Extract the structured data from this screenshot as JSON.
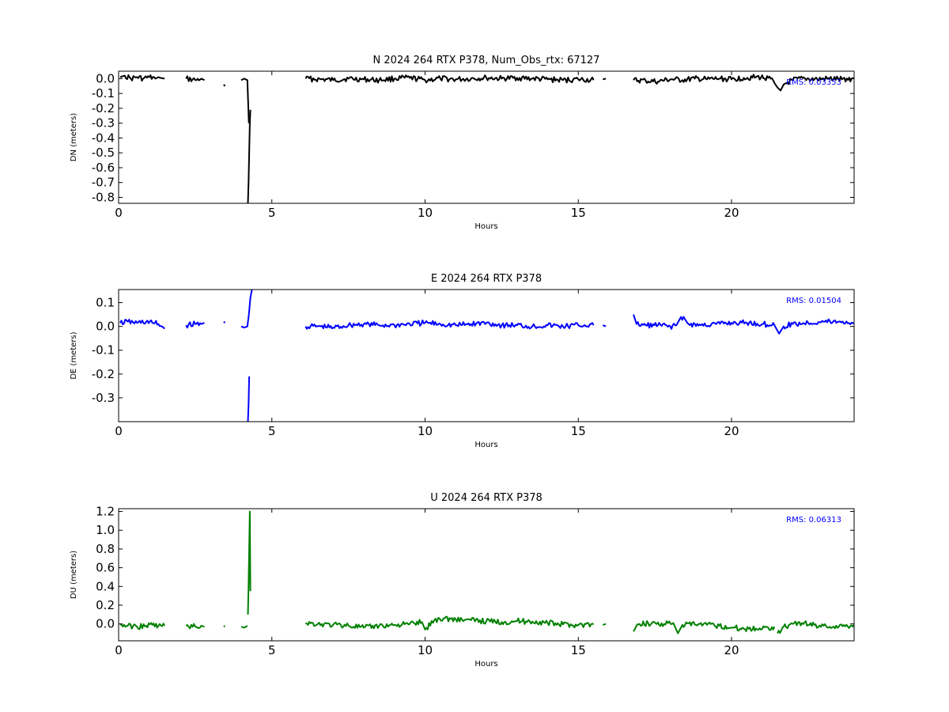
{
  "chart_data": [
    {
      "type": "line",
      "title": "N 2024 264 RTX  P378, Num_Obs_rtx: 67127",
      "xlabel": "Hours",
      "ylabel": "DN (meters)",
      "xlim": [
        0,
        24
      ],
      "ylim": [
        -0.84,
        0.05
      ],
      "xticks": [
        0,
        5,
        10,
        15,
        20
      ],
      "yticks": [
        0.0,
        -0.1,
        -0.2,
        -0.3,
        -0.4,
        -0.5,
        -0.6,
        -0.7,
        -0.8
      ],
      "rms_label": "RMS:  0.03353",
      "color": "#000000",
      "series": [
        {
          "x": [
            0.05,
            0.2,
            0.4,
            0.6,
            0.8,
            1.0,
            1.2,
            1.3,
            1.35,
            1.5
          ],
          "y": [
            0.01,
            0.02,
            0.0,
            0.01,
            0.0,
            0.01,
            0.0,
            0.01,
            0.005,
            0.0
          ]
        },
        {
          "x": [
            2.2,
            2.5,
            2.7,
            2.8
          ],
          "y": [
            0.0,
            -0.01,
            0.0,
            -0.01
          ]
        },
        {
          "x": [
            3.43,
            3.47
          ],
          "y": [
            -0.04,
            -0.05
          ]
        },
        {
          "x": [
            4.0,
            4.1,
            4.2,
            4.25
          ],
          "y": [
            -0.01,
            0.0,
            -0.01,
            -0.3
          ]
        },
        {
          "x": [
            4.22,
            4.24,
            4.26,
            4.28,
            4.3
          ],
          "y": [
            -0.84,
            -0.7,
            -0.5,
            -0.3,
            -0.21
          ]
        },
        {
          "x": [
            6.1,
            6.6,
            7.0,
            7.5,
            8.0,
            8.5,
            9.0,
            9.5,
            10.0,
            10.5,
            11.0,
            11.5,
            12.0,
            12.5,
            13.0,
            13.5,
            14.0,
            14.5,
            15.0,
            15.5
          ],
          "y": [
            0.0,
            -0.005,
            -0.01,
            0.0,
            -0.005,
            -0.01,
            0.0,
            0.005,
            -0.01,
            0.0,
            -0.005,
            0.0,
            0.005,
            0.0,
            0.005,
            0.0,
            -0.005,
            -0.01,
            -0.005,
            -0.01
          ]
        },
        {
          "x": [
            15.8,
            15.9
          ],
          "y": [
            -0.005,
            0.0
          ]
        },
        {
          "x": [
            16.8,
            17.2,
            17.6,
            18.0,
            18.4,
            18.8,
            19.2,
            19.6,
            20.0,
            20.4,
            20.8,
            21.2,
            21.4,
            21.5,
            21.6,
            21.7,
            22.0,
            22.4,
            22.8,
            23.2,
            23.6,
            24.0
          ],
          "y": [
            -0.01,
            -0.015,
            -0.02,
            -0.005,
            -0.01,
            0.0,
            -0.005,
            0.0,
            -0.005,
            0.005,
            0.01,
            0.005,
            -0.03,
            -0.06,
            -0.08,
            -0.04,
            -0.01,
            0.0,
            -0.005,
            0.0,
            -0.005,
            0.0
          ]
        }
      ]
    },
    {
      "type": "line",
      "title": "E 2024 264 RTX  P378",
      "xlabel": "Hours",
      "ylabel": "DE (meters)",
      "xlim": [
        0,
        24
      ],
      "ylim": [
        -0.4,
        0.155
      ],
      "xticks": [
        0,
        5,
        10,
        15,
        20
      ],
      "yticks": [
        0.1,
        0.0,
        -0.1,
        -0.2,
        -0.3
      ],
      "rms_label": "RMS:  0.01504",
      "color": "#0000ff",
      "series": [
        {
          "x": [
            0.05,
            0.3,
            0.6,
            0.9,
            1.1,
            1.3,
            1.5
          ],
          "y": [
            0.015,
            0.02,
            0.015,
            0.02,
            0.015,
            0.01,
            -0.01
          ]
        },
        {
          "x": [
            2.2,
            2.5,
            2.7,
            2.8
          ],
          "y": [
            0.005,
            0.01,
            0.01,
            0.015
          ]
        },
        {
          "x": [
            3.43,
            3.47
          ],
          "y": [
            0.015,
            0.02
          ]
        },
        {
          "x": [
            4.0,
            4.1,
            4.2,
            4.25,
            4.3,
            4.35
          ],
          "y": [
            0.0,
            -0.005,
            0.0,
            0.05,
            0.12,
            0.155
          ]
        },
        {
          "x": [
            4.22,
            4.24,
            4.26
          ],
          "y": [
            -0.4,
            -0.33,
            -0.21
          ]
        },
        {
          "x": [
            6.1,
            6.6,
            7.0,
            7.5,
            8.0,
            8.5,
            9.0,
            9.5,
            10.0,
            10.5,
            11.0,
            11.5,
            12.0,
            12.5,
            13.0,
            13.5,
            14.0,
            14.5,
            15.0,
            15.5
          ],
          "y": [
            0.0,
            0.0,
            -0.005,
            0.005,
            0.01,
            0.005,
            0.005,
            0.01,
            0.015,
            0.01,
            0.005,
            0.01,
            0.015,
            0.005,
            0.005,
            0.0,
            0.005,
            0.0,
            0.005,
            0.005
          ]
        },
        {
          "x": [
            15.8,
            15.9
          ],
          "y": [
            0.005,
            0.0
          ]
        },
        {
          "x": [
            16.8,
            16.9,
            17.2,
            17.6,
            18.0,
            18.2,
            18.35,
            18.6,
            19.0,
            19.5,
            20.0,
            20.5,
            21.0,
            21.4,
            21.55,
            21.7,
            22.0,
            22.5,
            23.0,
            23.5,
            24.0
          ],
          "y": [
            0.05,
            0.01,
            0.005,
            0.005,
            0.0,
            0.005,
            0.04,
            0.01,
            0.005,
            0.01,
            0.015,
            0.015,
            0.01,
            0.005,
            -0.03,
            0.0,
            0.01,
            0.015,
            0.02,
            0.02,
            0.015
          ]
        }
      ]
    },
    {
      "type": "line",
      "title": "U 2024 264 RTX  P378",
      "xlabel": "Hours",
      "ylabel": "DU (meters)",
      "xlim": [
        0,
        24
      ],
      "ylim": [
        -0.18,
        1.23
      ],
      "xticks": [
        0,
        5,
        10,
        15,
        20
      ],
      "yticks": [
        1.2,
        1.0,
        0.8,
        0.6,
        0.4,
        0.2,
        0.0
      ],
      "rms_label": "RMS:  0.06313",
      "color": "#008000",
      "series": [
        {
          "x": [
            0.05,
            0.3,
            0.6,
            0.9,
            1.1,
            1.3,
            1.5
          ],
          "y": [
            -0.01,
            -0.02,
            -0.03,
            -0.02,
            -0.01,
            -0.02,
            -0.02
          ]
        },
        {
          "x": [
            2.2,
            2.5,
            2.7,
            2.8
          ],
          "y": [
            -0.02,
            -0.03,
            -0.02,
            -0.03
          ]
        },
        {
          "x": [
            3.43,
            3.47
          ],
          "y": [
            -0.02,
            -0.03
          ]
        },
        {
          "x": [
            4.0,
            4.1,
            4.2
          ],
          "y": [
            -0.03,
            -0.04,
            -0.02
          ]
        },
        {
          "x": [
            4.22,
            4.24,
            4.26,
            4.28,
            4.3
          ],
          "y": [
            0.1,
            0.4,
            0.8,
            1.2,
            0.35
          ]
        },
        {
          "x": [
            6.1,
            6.5,
            7.0,
            7.5,
            8.0,
            8.5,
            9.0,
            9.5,
            9.9,
            10.0,
            10.3,
            10.6,
            11.0,
            11.5,
            12.0,
            12.5,
            13.0,
            13.5,
            14.0,
            14.5,
            15.0,
            15.5
          ],
          "y": [
            0.01,
            0.0,
            -0.01,
            -0.015,
            -0.04,
            -0.02,
            -0.01,
            0.0,
            0.02,
            -0.06,
            0.04,
            0.06,
            0.05,
            0.04,
            0.03,
            0.02,
            0.03,
            0.025,
            0.01,
            -0.005,
            -0.01,
            -0.005
          ]
        },
        {
          "x": [
            15.8,
            15.9
          ],
          "y": [
            -0.01,
            0.0
          ]
        },
        {
          "x": [
            16.8,
            17.0,
            17.4,
            17.8,
            18.1,
            18.25,
            18.4,
            18.8,
            19.2,
            19.6,
            20.0,
            20.4,
            20.8,
            21.2,
            21.4
          ],
          "y": [
            -0.08,
            0.0,
            0.01,
            0.0,
            0.01,
            -0.1,
            -0.01,
            -0.005,
            -0.01,
            -0.02,
            -0.04,
            -0.05,
            -0.05,
            -0.04,
            -0.03
          ]
        },
        {
          "x": [
            21.5,
            21.7,
            22.0,
            22.3,
            22.7,
            23.0,
            23.5,
            24.0
          ],
          "y": [
            -0.1,
            -0.03,
            0.0,
            0.01,
            -0.01,
            -0.02,
            -0.03,
            -0.01
          ]
        }
      ]
    }
  ]
}
